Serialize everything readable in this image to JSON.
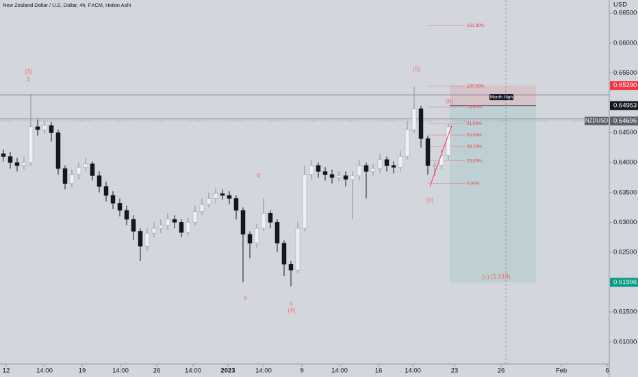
{
  "chart_data": {
    "type": "candlestick",
    "title": "New Zealand Dollar / U.S. Dollar, 4h, FXCM, Heikin Ashi",
    "y_axis_label": "USD",
    "open": [
      0.6415,
      0.641,
      0.64,
      0.6395,
      0.64,
      0.646,
      0.6455,
      0.6462,
      0.645,
      0.639,
      0.6365,
      0.638,
      0.6392,
      0.6398,
      0.6378,
      0.636,
      0.6345,
      0.6332,
      0.632,
      0.6305,
      0.6285,
      0.626,
      0.6282,
      0.629,
      0.6295,
      0.6305,
      0.63,
      0.6283,
      0.63,
      0.6318,
      0.633,
      0.634,
      0.6348,
      0.6345,
      0.634,
      0.632,
      0.628,
      0.6265,
      0.629,
      0.6315,
      0.63,
      0.6265,
      0.623,
      0.622,
      0.629,
      0.638,
      0.6395,
      0.6385,
      0.638,
      0.6375,
      0.6378,
      0.6372,
      0.6378,
      0.6395,
      0.6385,
      0.639,
      0.6405,
      0.6395,
      0.6392,
      0.641,
      0.6455,
      0.649,
      0.644,
      0.6395,
      0.6395,
      0.6412
    ],
    "high": [
      0.6422,
      0.6418,
      0.6408,
      0.641,
      0.6515,
      0.6472,
      0.647,
      0.6468,
      0.6455,
      0.6395,
      0.6388,
      0.64,
      0.6408,
      0.6402,
      0.6385,
      0.6368,
      0.6352,
      0.634,
      0.6328,
      0.6312,
      0.629,
      0.629,
      0.63,
      0.6305,
      0.6315,
      0.6312,
      0.6305,
      0.6308,
      0.6328,
      0.634,
      0.635,
      0.6358,
      0.6355,
      0.6352,
      0.6345,
      0.6325,
      0.6285,
      0.6298,
      0.634,
      0.632,
      0.6305,
      0.627,
      0.6235,
      0.63,
      0.6395,
      0.6405,
      0.64,
      0.6392,
      0.6388,
      0.6385,
      0.6385,
      0.6385,
      0.6405,
      0.64,
      0.6398,
      0.6415,
      0.641,
      0.6402,
      0.642,
      0.647,
      0.6527,
      0.6495,
      0.6445,
      0.6402,
      0.6422,
      0.6465
    ],
    "low": [
      0.6402,
      0.639,
      0.6385,
      0.6388,
      0.6395,
      0.6445,
      0.6448,
      0.6435,
      0.638,
      0.6355,
      0.6358,
      0.6372,
      0.6385,
      0.637,
      0.635,
      0.6335,
      0.6322,
      0.631,
      0.6295,
      0.627,
      0.6235,
      0.6252,
      0.6275,
      0.6282,
      0.6288,
      0.629,
      0.6275,
      0.6278,
      0.6295,
      0.6312,
      0.6325,
      0.6332,
      0.6338,
      0.633,
      0.6305,
      0.62,
      0.624,
      0.6258,
      0.6285,
      0.629,
      0.625,
      0.621,
      0.6193,
      0.6215,
      0.6285,
      0.6372,
      0.6375,
      0.637,
      0.6365,
      0.6368,
      0.636,
      0.6305,
      0.637,
      0.634,
      0.6378,
      0.6382,
      0.6385,
      0.6382,
      0.6385,
      0.6405,
      0.645,
      0.6425,
      0.638,
      0.6378,
      0.6388,
      0.6405
    ],
    "close": [
      0.641,
      0.64,
      0.6395,
      0.64,
      0.646,
      0.6455,
      0.6462,
      0.645,
      0.639,
      0.6365,
      0.638,
      0.6392,
      0.6398,
      0.6378,
      0.636,
      0.6345,
      0.6332,
      0.632,
      0.6305,
      0.6285,
      0.626,
      0.6282,
      0.629,
      0.6295,
      0.6305,
      0.63,
      0.6283,
      0.63,
      0.6318,
      0.633,
      0.634,
      0.6348,
      0.6345,
      0.634,
      0.632,
      0.628,
      0.6265,
      0.629,
      0.6315,
      0.63,
      0.6265,
      0.623,
      0.622,
      0.629,
      0.638,
      0.6395,
      0.6385,
      0.638,
      0.6375,
      0.6378,
      0.6372,
      0.6378,
      0.6395,
      0.6385,
      0.639,
      0.6405,
      0.6395,
      0.6392,
      0.641,
      0.6455,
      0.649,
      0.644,
      0.6395,
      0.6395,
      0.6412,
      0.646
    ],
    "up_color": "#eef0f4",
    "down_color": "#131722",
    "xlim": [
      -0.5,
      88.5
    ],
    "xticks": [
      {
        "value": 0.4,
        "label": "12"
      },
      {
        "value": 6,
        "label": "14:00"
      },
      {
        "value": 11.5,
        "label": "19"
      },
      {
        "value": 17.1,
        "label": "14:00"
      },
      {
        "value": 22.4,
        "label": "26"
      },
      {
        "value": 27.7,
        "label": "14:00"
      },
      {
        "value": 32.8,
        "label": "2023"
      },
      {
        "value": 38,
        "label": "14:00"
      },
      {
        "value": 43.6,
        "label": "9"
      },
      {
        "value": 49.1,
        "label": "14:00"
      },
      {
        "value": 54.8,
        "label": "16"
      },
      {
        "value": 59.8,
        "label": "14:00"
      },
      {
        "value": 65.9,
        "label": "23"
      },
      {
        "value": 72.7,
        "label": "26"
      },
      {
        "value": 81.5,
        "label": "Feb"
      },
      {
        "value": 88.2,
        "label": "6"
      }
    ],
    "ylim": [
      0.6063,
      0.6672
    ],
    "yticks": [
      {
        "value": 0.61,
        "label": "0.61000"
      },
      {
        "value": 0.615,
        "label": "0.61500"
      },
      {
        "value": 0.625,
        "label": "0.62500"
      },
      {
        "value": 0.63,
        "label": "0.63000"
      },
      {
        "value": 0.635,
        "label": "0.63500"
      },
      {
        "value": 0.64,
        "label": "0.64000"
      },
      {
        "value": 0.645,
        "label": "0.64500"
      },
      {
        "value": 0.655,
        "label": "0.65500"
      },
      {
        "value": 0.66,
        "label": "0.66000"
      },
      {
        "value": 0.665,
        "label": "0.66500"
      }
    ],
    "price_labels": [
      {
        "value": 0.6529,
        "label": "0.65290",
        "color": "#f23645"
      },
      {
        "value": 0.64953,
        "label": "0.64953",
        "color": "#131722"
      },
      {
        "value": 0.64696,
        "label": "0.64696",
        "color": "#5d606b",
        "name": "NZDUSD"
      },
      {
        "value": 0.61996,
        "label": "0.61996",
        "color": "#089981"
      }
    ],
    "hlines": [
      0.6513,
      0.6473
    ],
    "box_x": [
      65.2,
      77.8
    ],
    "box_note": "Month High",
    "fib_x": [
      62,
      67.5
    ],
    "fib_levels": [
      {
        "value": 0.6629,
        "label": "161.80%"
      },
      {
        "value": 0.6528,
        "label": "100.00%"
      },
      {
        "value": 0.6493,
        "label": "78.60%"
      },
      {
        "value": 0.6465,
        "label": "61.80%"
      },
      {
        "value": 0.6446,
        "label": "50.00%"
      },
      {
        "value": 0.6427,
        "label": "38.20%"
      },
      {
        "value": 0.6403,
        "label": "23.60%"
      },
      {
        "value": 0.6365,
        "label": "0.00%"
      }
    ],
    "trend_line": {
      "x": [
        62.3,
        65.5
      ],
      "y": [
        0.636,
        0.6462
      ]
    },
    "wave_labels": [
      "(3)",
      "5",
      "b",
      "a",
      "c",
      "(4)",
      "(5)",
      "(b)",
      "(a)",
      "(c) (1.618)"
    ]
  }
}
